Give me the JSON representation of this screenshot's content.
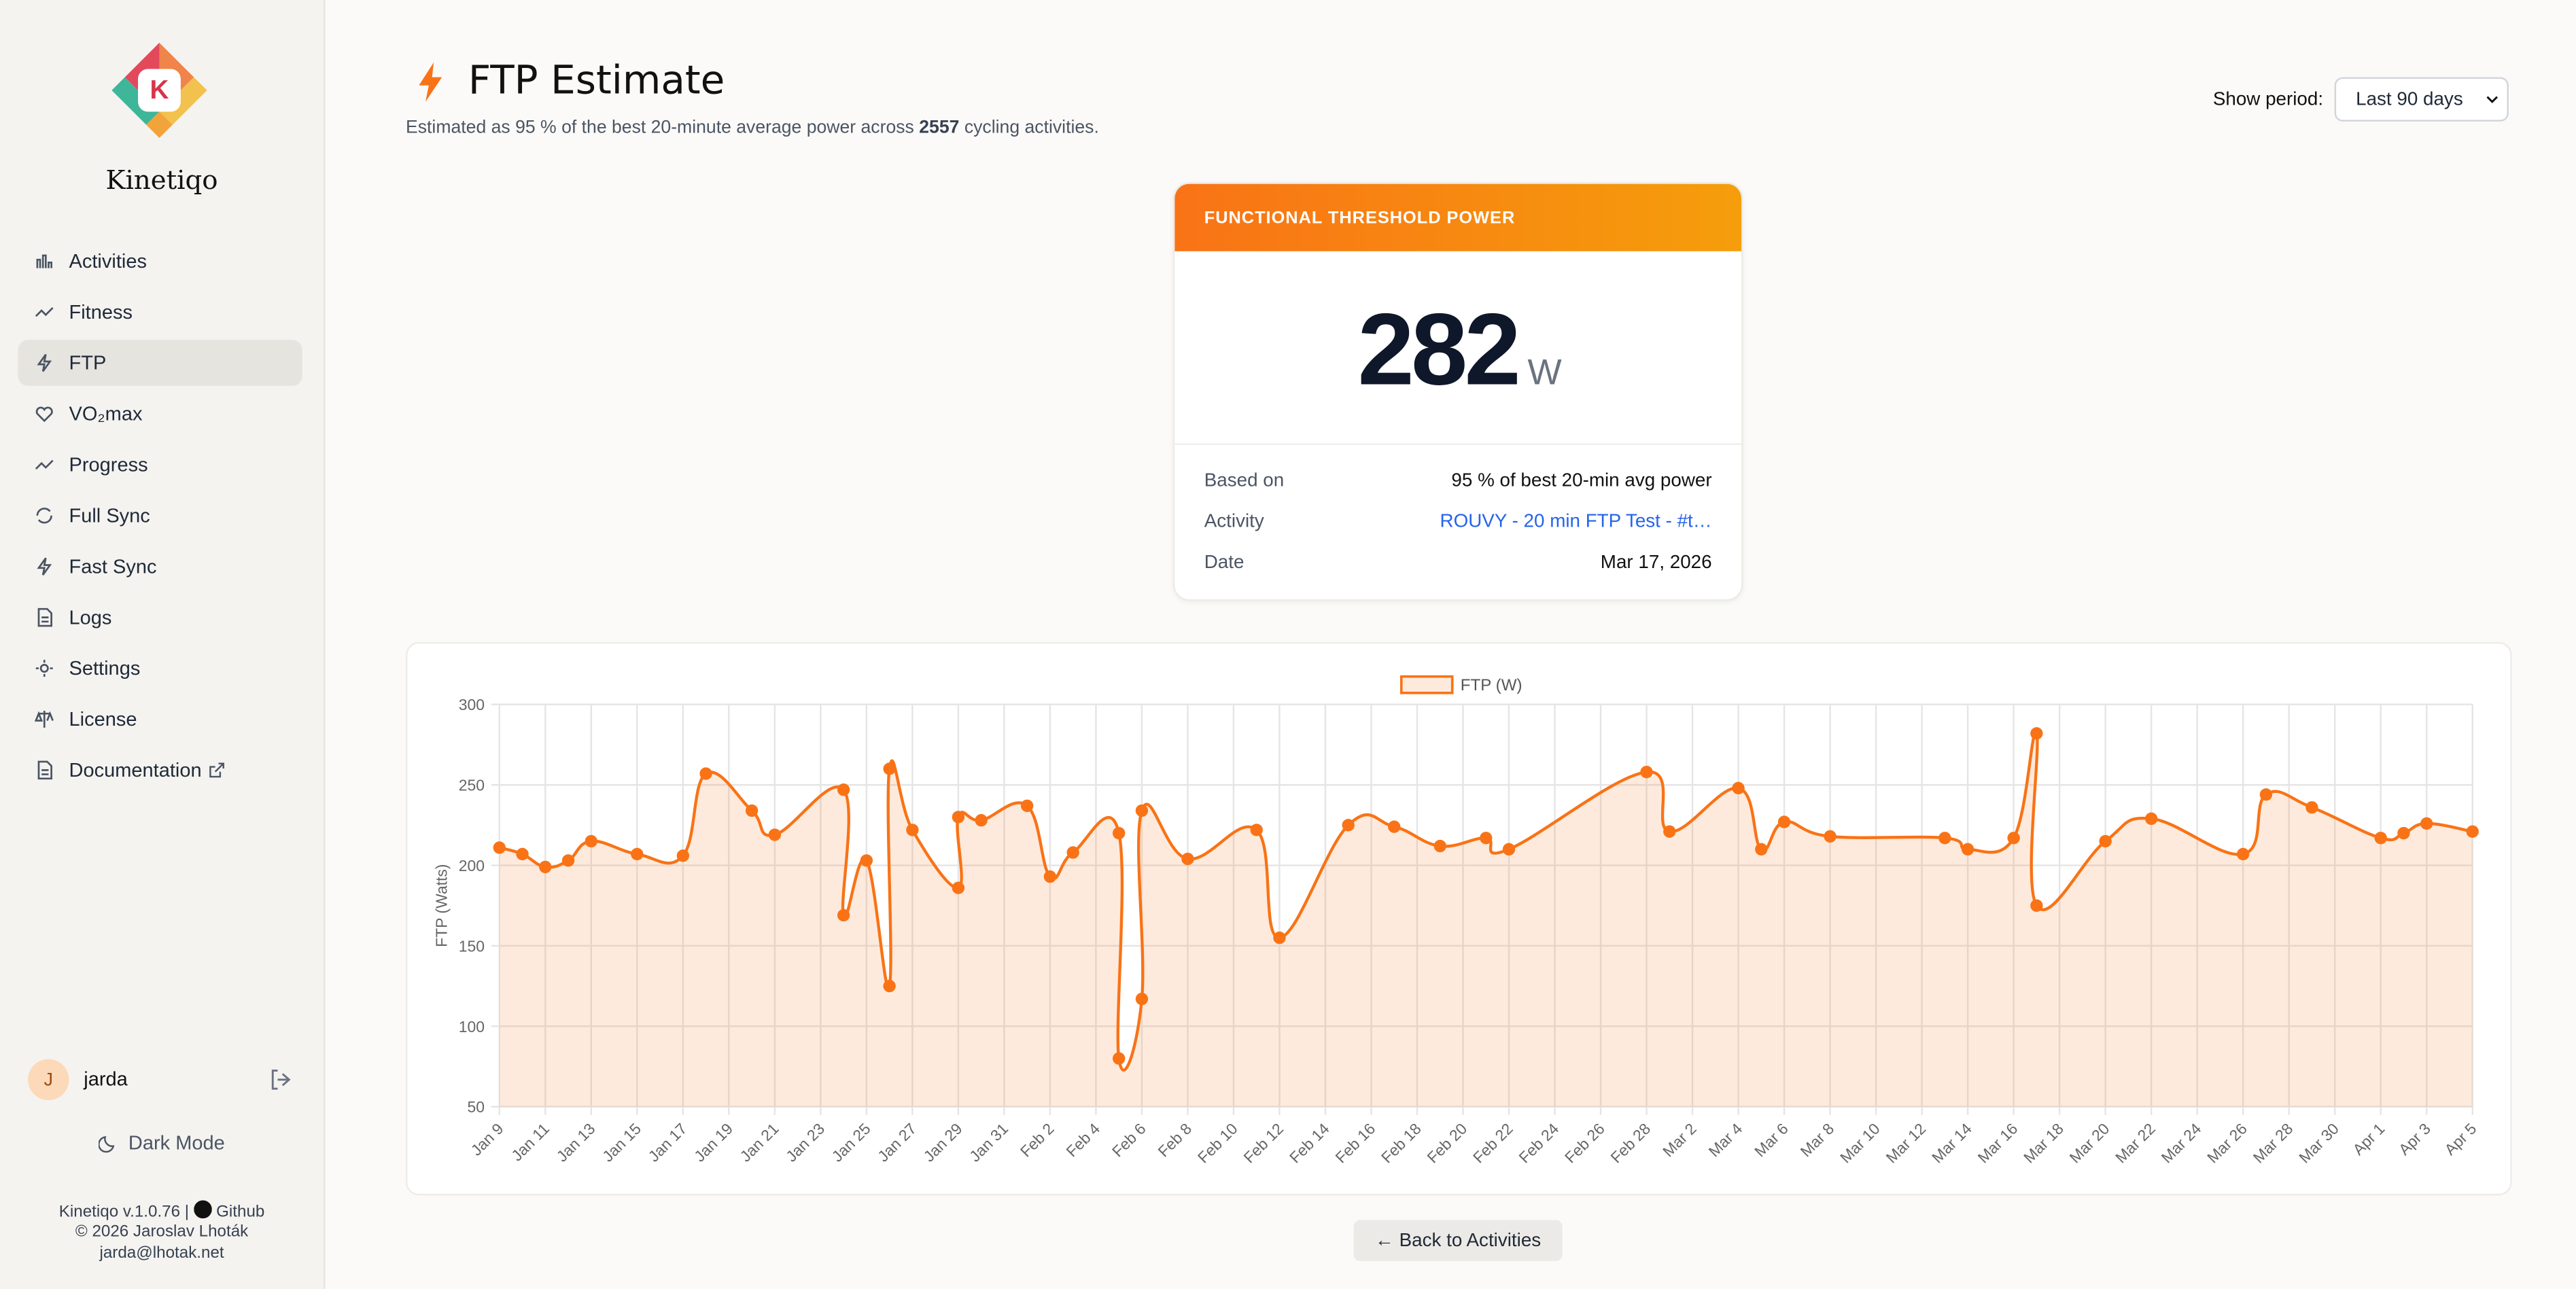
{
  "sidebar": {
    "brand": "Kinetiqo",
    "logo_letter": "K",
    "nav": [
      "Activities",
      "Fitness",
      "FTP",
      "VO₂max",
      "Progress",
      "Full Sync",
      "Fast Sync",
      "Logs",
      "Settings",
      "License",
      "Documentation"
    ],
    "user": {
      "initial": "J",
      "name": "jarda"
    },
    "dark_mode": "Dark Mode",
    "footer": {
      "version": "Kinetiqo v.1.0.76 |",
      "github": "Github",
      "copyright": "© 2026 Jaroslav Lhoták",
      "email": "jarda@lhotak.net"
    }
  },
  "header": {
    "title": "FTP Estimate",
    "subtitle_before": "Estimated as 95 % of the best 20-minute average power across",
    "activity_count": 2557,
    "subtitle_after": "cycling activities.",
    "period_label": "Show period:",
    "period_value": "Last 90 days"
  },
  "card": {
    "title": "FUNCTIONAL THRESHOLD POWER",
    "value": 282,
    "unit": "W",
    "rows": [
      [
        "Based on",
        "95 % of best 20-min avg power"
      ],
      [
        "Activity",
        "ROUVY - 20 min FTP Test - #t…"
      ],
      [
        "Date",
        "Mar 17, 2026"
      ]
    ]
  },
  "chart_data": {
    "type": "line",
    "y_label": "FTP (Watts)",
    "grid": true,
    "legend": "top",
    "x": [
      "Jan 9",
      "Jan 10",
      "Jan 11",
      "Jan 12",
      "Jan 13",
      "Jan 15",
      "Jan 17",
      "Jan 18",
      "Jan 20",
      "Jan 21",
      "Jan 24",
      "Jan 24",
      "Jan 25",
      "Jan 26",
      "Jan 26",
      "Jan 27",
      "Jan 29",
      "Jan 29",
      "Jan 30",
      "Feb 1",
      "Feb 2",
      "Feb 3",
      "Feb 5",
      "Feb 5",
      "Feb 6",
      "Feb 6",
      "Feb 8",
      "Feb 11",
      "Feb 12",
      "Feb 15",
      "Feb 17",
      "Feb 19",
      "Feb 21",
      "Feb 22",
      "Feb 28",
      "Mar 1",
      "Mar 4",
      "Mar 5",
      "Mar 6",
      "Mar 8",
      "Mar 13",
      "Mar 14",
      "Mar 16",
      "Mar 17",
      "Mar 17",
      "Mar 20",
      "Mar 22",
      "Mar 26",
      "Mar 27",
      "Mar 29",
      "Apr 1",
      "Apr 2",
      "Apr 3",
      "Apr 5"
    ],
    "series": [
      {
        "name": "FTP (W)",
        "color": "#f97316",
        "values": [
          211,
          207,
          199,
          203,
          215,
          207,
          206,
          257,
          234,
          219,
          247,
          169,
          203,
          125,
          260,
          222,
          186,
          230,
          228,
          237,
          193,
          208,
          220,
          80,
          117,
          234,
          204,
          222,
          155,
          225,
          224,
          212,
          217,
          210,
          258,
          221,
          248,
          210,
          227,
          218,
          217,
          210,
          217,
          282,
          175,
          215,
          229,
          207,
          244,
          236,
          217,
          220,
          226,
          221
        ]
      }
    ],
    "xlim": [
      "Jan 9",
      "Apr 5"
    ],
    "xticks": [
      "Jan 9",
      "Jan 11",
      "Jan 13",
      "Jan 15",
      "Jan 17",
      "Jan 19",
      "Jan 21",
      "Jan 23",
      "Jan 25",
      "Jan 27",
      "Jan 29",
      "Jan 31",
      "Feb 2",
      "Feb 4",
      "Feb 6",
      "Feb 8",
      "Feb 10",
      "Feb 12",
      "Feb 14",
      "Feb 16",
      "Feb 18",
      "Feb 20",
      "Feb 22",
      "Feb 24",
      "Feb 26",
      "Feb 28",
      "Mar 2",
      "Mar 4",
      "Mar 6",
      "Mar 8",
      "Mar 10",
      "Mar 12",
      "Mar 14",
      "Mar 16",
      "Mar 18",
      "Mar 20",
      "Mar 22",
      "Mar 24",
      "Mar 26",
      "Mar 28",
      "Mar 30",
      "Apr 1",
      "Apr 3",
      "Apr 5"
    ],
    "ylim": [
      50,
      300
    ],
    "yticks": [
      50,
      100,
      150,
      200,
      250,
      300
    ]
  },
  "back_button": "← Back to Activities"
}
